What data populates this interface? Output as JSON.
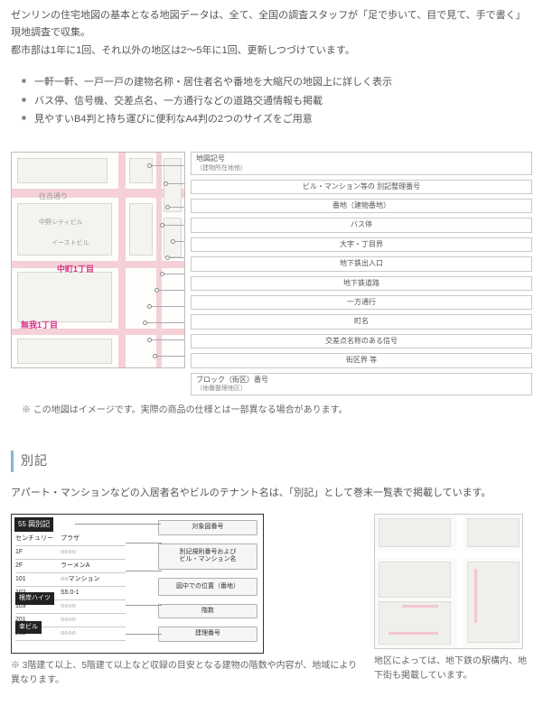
{
  "intro": {
    "p1": "ゼンリンの住宅地図の基本となる地図データは、全て、全国の調査スタッフが「足で歩いて、目で見て、手で書く」現地調査で収集。",
    "p2": "都市部は1年に1回、それ以外の地区は2～5年に1回、更新しつづけています。"
  },
  "features": [
    "一軒一軒、一戸一戸の建物名称・居住者名や番地を大縮尺の地図上に詳しく表示",
    "バス停、信号機、交差点名、一方通行などの道路交通情報も掲載",
    "見やすいB4判と持ち運びに便利なA4判の2つのサイズをご用意"
  ],
  "mapArea": {
    "streetLabel": "住吉通り",
    "wardLabel1": "中町1丁目",
    "wardLabel2": "無我1丁目",
    "buildingLabel": "中野シティビル",
    "buildingLabel2": "イーストビル",
    "legend": [
      {
        "text": "地図記号",
        "sub": "（建物所在地他）"
      },
      {
        "text": "ビル・マンション等の\n別記整理番号"
      },
      {
        "text": "番地（建物番地）"
      },
      {
        "text": "バス停"
      },
      {
        "text": "大字・丁目界"
      },
      {
        "text": "地下鉄出入口"
      },
      {
        "text": "地下鉄道路"
      },
      {
        "text": "一方通行"
      },
      {
        "text": "町名"
      },
      {
        "text": "交差点名称のある信号"
      },
      {
        "text": "街区界 等"
      },
      {
        "text": "ブロック（街区）番号",
        "sub": "（地番整理地区）"
      }
    ],
    "note": "※ この地図はイメージです。実際の商品の仕様とは一部異なる場合があります。"
  },
  "besshi": {
    "title": "別記",
    "desc": "アパート・マンションなどの入居者名やビルのテナント名は、「別記」として巻末一覧表で掲載しています。",
    "left": {
      "header": "55 図別記",
      "rows": [
        {
          "c1": "センチュリー",
          "c2": "プラザ"
        },
        {
          "c1": "1F",
          "c2": "○○○○"
        },
        {
          "c1": "2F",
          "c2": "ラーメンA"
        },
        {
          "c1": "101",
          "c2": "○○マンション"
        },
        {
          "c1": "102",
          "c2": "S5.0-1"
        },
        {
          "c1": "103",
          "c2": "○○○○"
        },
        {
          "c1": "201",
          "c2": "○○○○"
        },
        {
          "c1": "202",
          "c2": "○○○○"
        }
      ],
      "midHeader": "幸ビル",
      "rows2": [
        {
          "c1": "1F",
          "c2": "○○○○"
        },
        {
          "c1": "2F",
          "c2": "○○○○"
        }
      ],
      "midHeader2": "根岸ハイツ",
      "pills": [
        "対象図番号",
        "別記規則番号および\nビル・マンション名",
        "図中での位置（番地）",
        "階数",
        "建理番号"
      ]
    },
    "leftNote": "※ 3階建て以上、5階建て以上など収録の目安となる建物の階数や内容が、地域により異なります。",
    "rightNote": "地区によっては、地下鉄の駅構内、地下街も掲載しています。"
  },
  "colors": {
    "accent": "#7fb8d4",
    "mapPink": "#f5d0d6",
    "wardPink": "#d63384"
  }
}
